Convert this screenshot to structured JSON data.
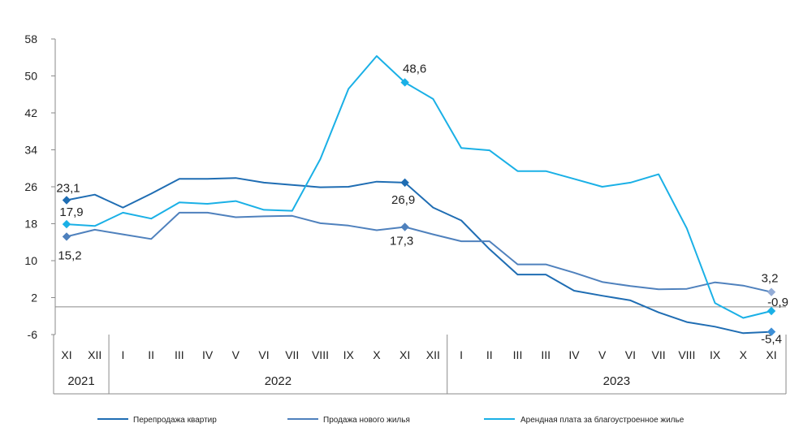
{
  "chart_data": {
    "type": "line",
    "title": "",
    "xlabel": "",
    "ylabel": "",
    "ylim": [
      -6,
      58
    ],
    "yticks": [
      "58",
      "50",
      "42",
      "34",
      "26",
      "18",
      "10",
      "2",
      "-6"
    ],
    "grid": false,
    "legend_position": "bottom",
    "categories": [
      "XI",
      "XII",
      "I",
      "II",
      "III",
      "IV",
      "V",
      "VI",
      "VII",
      "VIII",
      "IX",
      "X",
      "XI",
      "XII",
      "I",
      "II",
      "III",
      "III",
      "IV",
      "V",
      "VI",
      "VII",
      "VIII",
      "IX",
      "X",
      "XI"
    ],
    "years": [
      {
        "label": "2021",
        "span": [
          0,
          1
        ]
      },
      {
        "label": "2022",
        "span": [
          2,
          13
        ]
      },
      {
        "label": "2023",
        "span": [
          14,
          25
        ]
      }
    ],
    "series": [
      {
        "name": "Перепродажа квартир",
        "color": "#1f6db3",
        "values": [
          23.1,
          24.3,
          21.5,
          24.5,
          27.7,
          27.7,
          27.9,
          26.9,
          26.4,
          25.9,
          26.0,
          27.1,
          26.9,
          21.5,
          18.7,
          12.5,
          7.0,
          7.0,
          3.5,
          2.4,
          1.4,
          -1.2,
          -3.3,
          -4.3,
          -5.7,
          -5.4
        ],
        "labels": [
          {
            "index": 0,
            "text": "23,1"
          },
          {
            "index": 12,
            "text": "26,9"
          },
          {
            "index": 25,
            "text": "-5,4"
          }
        ]
      },
      {
        "name": "Продажа нового жилья",
        "color": "#4f81bd",
        "values": [
          15.2,
          16.7,
          15.7,
          14.7,
          20.4,
          20.4,
          19.4,
          19.6,
          19.7,
          18.1,
          17.6,
          16.6,
          17.3,
          15.7,
          14.2,
          14.2,
          9.2,
          9.2,
          7.4,
          5.4,
          4.5,
          3.8,
          3.9,
          5.3,
          4.6,
          3.2
        ],
        "labels": [
          {
            "index": 0,
            "text": "15,2"
          },
          {
            "index": 12,
            "text": "17,3"
          },
          {
            "index": 25,
            "text": "3,2"
          }
        ]
      },
      {
        "name": "Арендная плата за благоустроенное жилье",
        "color": "#1ab0e6",
        "values": [
          17.9,
          17.5,
          20.4,
          19.1,
          22.6,
          22.3,
          22.9,
          21.0,
          20.8,
          32.0,
          47.2,
          54.3,
          48.6,
          45.0,
          34.4,
          33.9,
          29.4,
          29.4,
          27.7,
          26.0,
          26.9,
          28.7,
          17.0,
          0.8,
          -2.4,
          -0.9
        ],
        "labels": [
          {
            "index": 0,
            "text": "17,9"
          },
          {
            "index": 12,
            "text": "48,6"
          },
          {
            "index": 25,
            "text": "-0,9"
          }
        ]
      }
    ]
  }
}
